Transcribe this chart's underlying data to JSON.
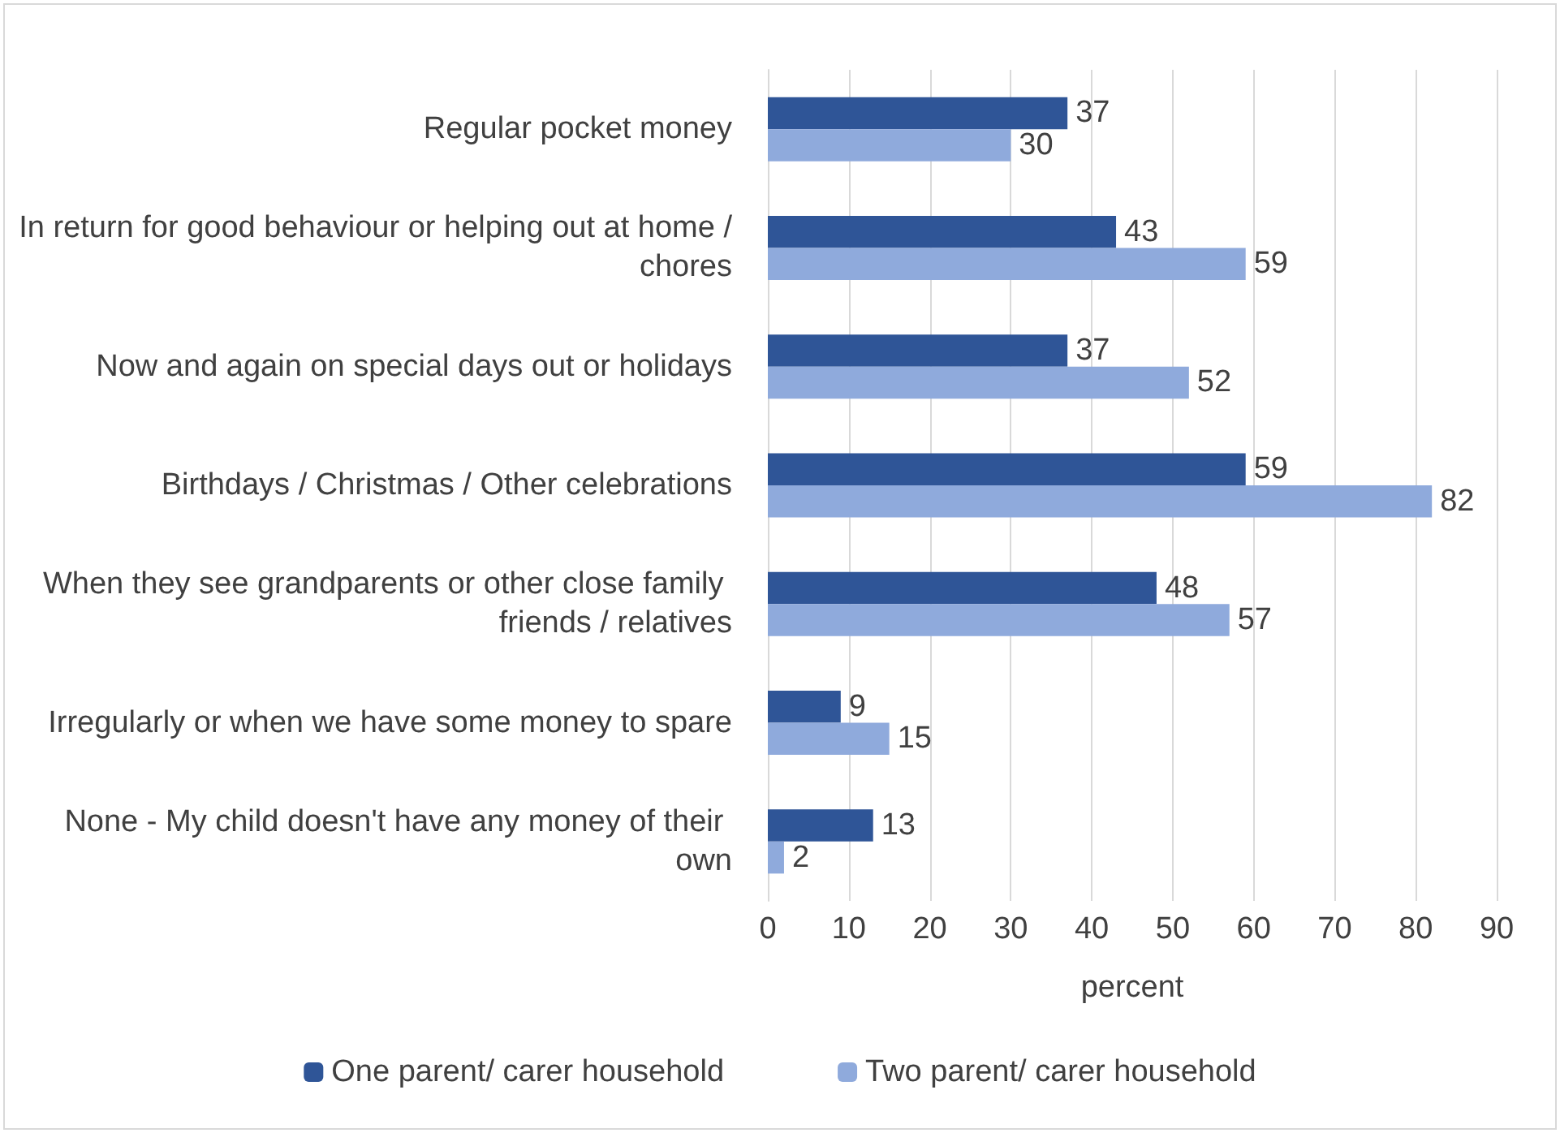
{
  "chart_data": {
    "type": "bar",
    "orientation": "horizontal",
    "categories": [
      "Regular pocket money",
      "In return for good behaviour or helping out at home / chores",
      "Now and again on special days out or holidays",
      "Birthdays / Christmas / Other celebrations",
      "When they see grandparents or other close family friends / relatives",
      "Irregularly or when we have some money to spare",
      "None - My child doesn't have any money of their own"
    ],
    "series": [
      {
        "name": "One parent/ carer household",
        "color": "#2f5597",
        "values": [
          37,
          43,
          37,
          59,
          48,
          9,
          13
        ]
      },
      {
        "name": "Two parent/ carer household",
        "color": "#8faadc",
        "values": [
          30,
          59,
          52,
          82,
          57,
          15,
          2
        ]
      }
    ],
    "xlabel": "percent",
    "xlim": [
      0,
      90
    ],
    "xticks": [
      0,
      10,
      20,
      30,
      40,
      50,
      60,
      70,
      80,
      90
    ],
    "grid": "x",
    "legend": "bottom",
    "data_labels": true
  }
}
